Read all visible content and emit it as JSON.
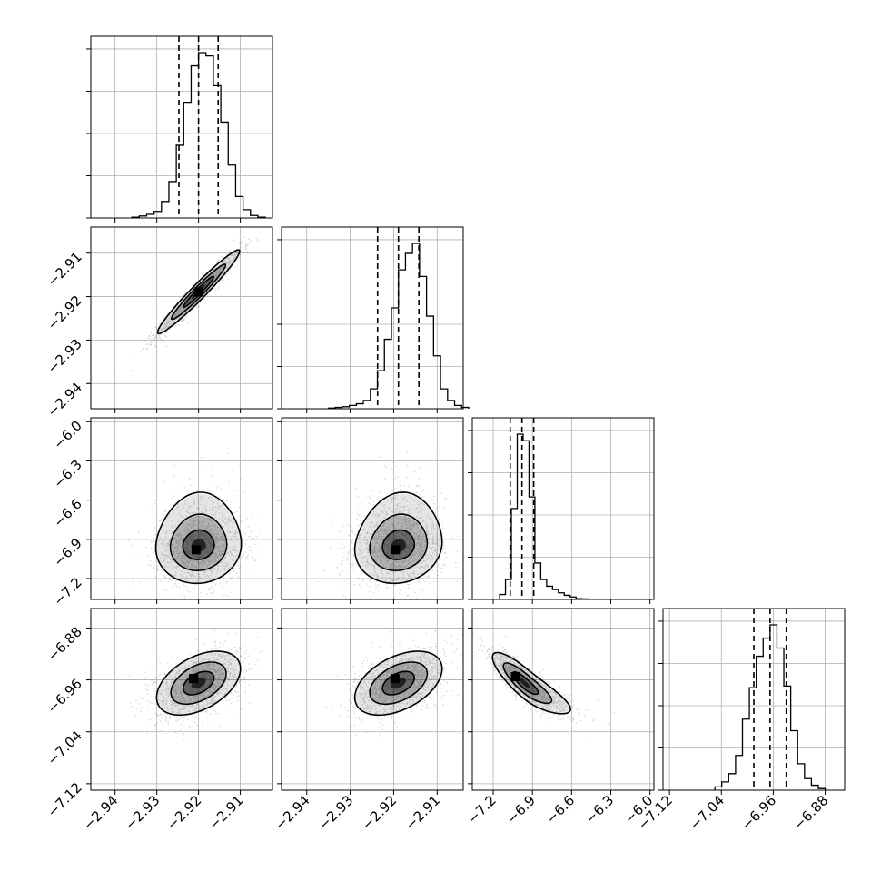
{
  "chart_data": {
    "type": "corner",
    "grid": true,
    "parameters": [
      {
        "index": 0,
        "range": [
          -2.9458,
          -2.9023
        ],
        "ticks": [
          -2.94,
          -2.93,
          -2.92,
          -2.91
        ],
        "tick_labels": [
          "−2.94",
          "−2.93",
          "−2.92",
          "−2.91"
        ],
        "quantiles": [
          -2.9247,
          -2.92,
          -2.9153
        ]
      },
      {
        "index": 1,
        "range": [
          -2.9458,
          -2.904
        ],
        "ticks": [
          -2.94,
          -2.93,
          -2.92,
          -2.91
        ],
        "tick_labels": [
          "−2.94",
          "−2.93",
          "−2.92",
          "−2.91"
        ],
        "quantiles": [
          -2.9237,
          -2.9189,
          -2.9142
        ]
      },
      {
        "index": 2,
        "range": [
          -7.36,
          -5.97
        ],
        "ticks": [
          -7.2,
          -6.9,
          -6.6,
          -6.3,
          -6.0
        ],
        "tick_labels": [
          "−7.2",
          "−6.9",
          "−6.6",
          "−6.3",
          "−6.0"
        ],
        "quantiles": [
          -7.07,
          -6.98,
          -6.89
        ]
      },
      {
        "index": 3,
        "range": [
          -7.13,
          -6.85
        ],
        "ticks": [
          -7.12,
          -7.04,
          -6.96,
          -6.88
        ],
        "tick_labels": [
          "−7.12",
          "−7.04",
          "−6.96",
          "−6.88"
        ],
        "quantiles": [
          -6.99,
          -6.965,
          -6.94
        ]
      }
    ],
    "histograms": [
      {
        "param": 0,
        "counts": [
          0.5,
          1.2,
          2.2,
          4.0,
          10,
          22,
          44,
          70,
          92,
          100,
          98,
          80,
          58,
          32,
          13,
          5,
          1.5,
          0.5
        ]
      },
      {
        "param": 1,
        "counts": [
          0.4,
          0.8,
          1.2,
          2.0,
          3.0,
          5.0,
          12,
          23,
          42,
          61,
          84,
          94,
          100,
          80,
          56,
          32,
          12,
          5,
          2,
          0.8
        ]
      },
      {
        "param": 2,
        "counts": [
          3,
          12,
          55,
          100,
          96,
          62,
          22,
          12,
          8,
          6,
          4,
          2.5,
          1.5,
          0.5,
          0.3
        ]
      },
      {
        "param": 3,
        "counts": [
          2,
          5,
          10,
          21,
          43,
          62,
          81,
          92,
          100,
          86,
          63,
          36,
          16,
          7,
          3,
          1
        ]
      }
    ],
    "pairs": [
      {
        "x_param": 0,
        "y_param": 1,
        "mean": [
          -2.92,
          -2.9189
        ],
        "sd": [
          0.0048,
          0.0047
        ],
        "rho": 0.97,
        "peak": [
          -2.92,
          -2.9189
        ]
      },
      {
        "x_param": 0,
        "y_param": 2,
        "mean": [
          -2.92,
          -6.95
        ],
        "sd": [
          0.005,
          0.14
        ],
        "rho": 0.05,
        "skew_y": 0.6,
        "peak": [
          -2.9206,
          -6.98
        ]
      },
      {
        "x_param": 1,
        "y_param": 2,
        "mean": [
          -2.9189,
          -6.95
        ],
        "sd": [
          0.0049,
          0.14
        ],
        "rho": 0.1,
        "skew_y": 0.6,
        "peak": [
          -2.9196,
          -6.98
        ]
      },
      {
        "x_param": 0,
        "y_param": 3,
        "mean": [
          -2.92,
          -6.965
        ],
        "sd": [
          0.0049,
          0.024
        ],
        "rho": 0.45,
        "peak": [
          -2.9212,
          -6.958
        ]
      },
      {
        "x_param": 1,
        "y_param": 3,
        "mean": [
          -2.9189,
          -6.965
        ],
        "sd": [
          0.0049,
          0.024
        ],
        "rho": 0.45,
        "peak": [
          -2.9197,
          -6.958
        ]
      },
      {
        "x_param": 2,
        "y_param": 3,
        "mean": [
          -6.96,
          -6.965
        ],
        "sd": [
          0.12,
          0.023
        ],
        "rho": -0.85,
        "skew_x": 0.6,
        "peak": [
          -7.03,
          -6.955
        ]
      }
    ],
    "colors": {
      "line": "#000000",
      "grid": "#b0b0b0",
      "points": "#666666",
      "density": "#000000"
    }
  }
}
